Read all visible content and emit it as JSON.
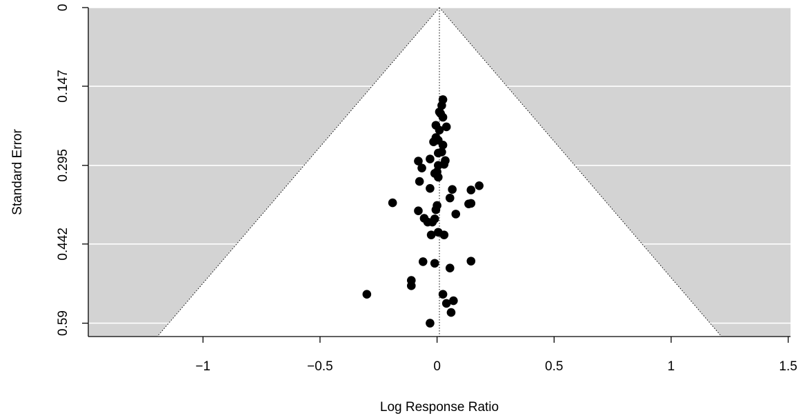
{
  "chart_data": {
    "type": "scatter",
    "title": "",
    "xlabel": "Log Response Ratio",
    "ylabel": "Standard Error",
    "xlim": [
      -1.49,
      1.51
    ],
    "ylim": [
      0.615,
      0
    ],
    "y_reversed": true,
    "xticks": [
      -1,
      -0.5,
      0,
      0.5,
      1,
      1.5
    ],
    "xtick_labels": [
      "−1",
      "−0.5",
      "0",
      "0.5",
      "1",
      "1.5"
    ],
    "yticks": [
      0,
      0.147,
      0.295,
      0.442,
      0.59
    ],
    "ytick_labels": [
      "0",
      "0.147",
      "0.295",
      "0.442",
      "0.59"
    ],
    "grid": true,
    "background_color": "#d3d3d3",
    "funnel_fill": "#ffffff",
    "point_color": "#000000",
    "funnel": {
      "center": 0.01,
      "z": 1.96,
      "se_max": 0.615
    },
    "points": [
      {
        "x": 0.025,
        "y": 0.172
      },
      {
        "x": 0.02,
        "y": 0.183
      },
      {
        "x": 0.01,
        "y": 0.195
      },
      {
        "x": 0.025,
        "y": 0.205
      },
      {
        "x": 0.015,
        "y": 0.198
      },
      {
        "x": 0.04,
        "y": 0.223
      },
      {
        "x": -0.005,
        "y": 0.22
      },
      {
        "x": 0.01,
        "y": 0.229
      },
      {
        "x": -0.005,
        "y": 0.243
      },
      {
        "x": 0.005,
        "y": 0.248
      },
      {
        "x": -0.015,
        "y": 0.251
      },
      {
        "x": 0.025,
        "y": 0.257
      },
      {
        "x": 0.005,
        "y": 0.272
      },
      {
        "x": 0.02,
        "y": 0.27
      },
      {
        "x": -0.08,
        "y": 0.287
      },
      {
        "x": -0.03,
        "y": 0.283
      },
      {
        "x": 0.035,
        "y": 0.286
      },
      {
        "x": -0.065,
        "y": 0.3
      },
      {
        "x": 0.005,
        "y": 0.295
      },
      {
        "x": 0.03,
        "y": 0.293
      },
      {
        "x": -0.01,
        "y": 0.31
      },
      {
        "x": 0.0,
        "y": 0.307
      },
      {
        "x": 0.005,
        "y": 0.317
      },
      {
        "x": -0.075,
        "y": 0.325
      },
      {
        "x": -0.03,
        "y": 0.338
      },
      {
        "x": 0.065,
        "y": 0.34
      },
      {
        "x": 0.18,
        "y": 0.333
      },
      {
        "x": 0.145,
        "y": 0.341
      },
      {
        "x": 0.055,
        "y": 0.356
      },
      {
        "x": -0.19,
        "y": 0.365
      },
      {
        "x": 0.135,
        "y": 0.367
      },
      {
        "x": 0.145,
        "y": 0.366
      },
      {
        "x": 0.0,
        "y": 0.37
      },
      {
        "x": -0.005,
        "y": 0.378
      },
      {
        "x": -0.08,
        "y": 0.38
      },
      {
        "x": 0.08,
        "y": 0.386
      },
      {
        "x": -0.055,
        "y": 0.394
      },
      {
        "x": -0.04,
        "y": 0.401
      },
      {
        "x": -0.01,
        "y": 0.395
      },
      {
        "x": -0.02,
        "y": 0.401
      },
      {
        "x": 0.005,
        "y": 0.42
      },
      {
        "x": -0.025,
        "y": 0.425
      },
      {
        "x": 0.03,
        "y": 0.425
      },
      {
        "x": -0.06,
        "y": 0.475
      },
      {
        "x": -0.01,
        "y": 0.478
      },
      {
        "x": 0.145,
        "y": 0.474
      },
      {
        "x": 0.055,
        "y": 0.487
      },
      {
        "x": -0.11,
        "y": 0.51
      },
      {
        "x": -0.11,
        "y": 0.52
      },
      {
        "x": -0.3,
        "y": 0.536
      },
      {
        "x": 0.025,
        "y": 0.536
      },
      {
        "x": 0.07,
        "y": 0.548
      },
      {
        "x": 0.04,
        "y": 0.553
      },
      {
        "x": 0.06,
        "y": 0.57
      },
      {
        "x": -0.03,
        "y": 0.59
      }
    ]
  }
}
